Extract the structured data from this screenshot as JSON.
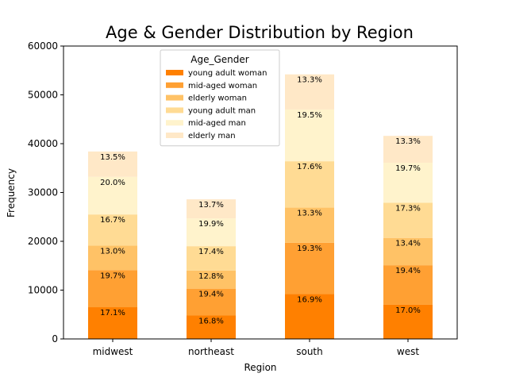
{
  "chart_data": {
    "type": "bar",
    "stacked": true,
    "title": "Age & Gender Distribution by Region",
    "xlabel": "Region",
    "ylabel": "Frequency",
    "ylim": [
      0,
      60000
    ],
    "yticks": [
      0,
      10000,
      20000,
      30000,
      40000,
      50000,
      60000
    ],
    "categories": [
      "midwest",
      "northeast",
      "south",
      "west"
    ],
    "legend": {
      "title": "Age_Gender",
      "position": "upper-center"
    },
    "series": [
      {
        "name": "young adult woman",
        "color": "#ff8000",
        "values": [
          6500,
          4800,
          9200,
          7000
        ],
        "labels": [
          "17.1%",
          "16.8%",
          "16.9%",
          "17.0%"
        ]
      },
      {
        "name": "mid-aged woman",
        "color": "#ffa033",
        "values": [
          7600,
          5500,
          10500,
          8100
        ],
        "labels": [
          "19.7%",
          "19.4%",
          "19.3%",
          "19.4%"
        ]
      },
      {
        "name": "elderly woman",
        "color": "#ffc266",
        "values": [
          5000,
          3700,
          7200,
          5600
        ],
        "labels": [
          "13.0%",
          "12.8%",
          "13.3%",
          "13.4%"
        ]
      },
      {
        "name": "young adult man",
        "color": "#ffdb94",
        "values": [
          6400,
          5000,
          9500,
          7200
        ],
        "labels": [
          "16.7%",
          "17.4%",
          "17.6%",
          "17.3%"
        ]
      },
      {
        "name": "mid-aged man",
        "color": "#fff3cc",
        "values": [
          7700,
          5700,
          10600,
          8200
        ],
        "labels": [
          "20.0%",
          "19.9%",
          "19.5%",
          "19.7%"
        ]
      },
      {
        "name": "elderly man",
        "color": "#ffe8c7",
        "values": [
          5200,
          3900,
          7200,
          5500
        ],
        "labels": [
          "13.5%",
          "13.7%",
          "13.3%",
          "13.3%"
        ]
      }
    ]
  }
}
